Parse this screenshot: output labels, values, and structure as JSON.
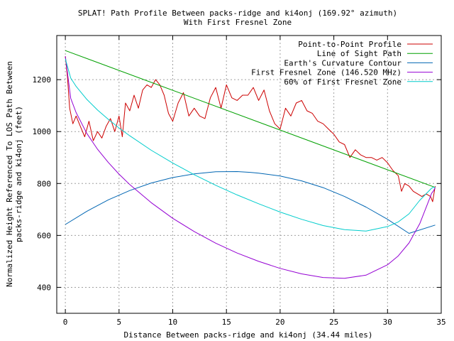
{
  "chart_data": {
    "type": "line",
    "title": "SPLAT! Path Profile Between packs-ridge and ki4onj (169.92° azimuth)",
    "subtitle": "With First Fresnel Zone",
    "xlabel": "Distance Between packs-ridge and ki4onj (34.44 miles)",
    "ylabel_line1": "Normalized Height Referenced To LOS Path Between",
    "ylabel_line2": "packs-ridge and ki4onj (feet)",
    "xlim": [
      -0.8,
      35
    ],
    "ylim": [
      300,
      1370
    ],
    "x_ticks": [
      0,
      5,
      10,
      15,
      20,
      25,
      30,
      35
    ],
    "y_ticks": [
      400,
      600,
      800,
      1000,
      1200
    ],
    "grid": true,
    "legend_position": "top-right",
    "series": [
      {
        "name": "Point-to-Point Profile",
        "color": "#cc0000",
        "x": [
          0,
          0.2,
          0.4,
          0.7,
          1.0,
          1.4,
          1.8,
          2.2,
          2.6,
          3.0,
          3.4,
          3.8,
          4.2,
          4.6,
          5.0,
          5.3,
          5.6,
          6.0,
          6.4,
          6.8,
          7.2,
          7.6,
          8.0,
          8.4,
          8.8,
          9.2,
          9.6,
          10.0,
          10.5,
          11.0,
          11.5,
          12.0,
          12.5,
          13.0,
          13.5,
          14.0,
          14.5,
          15.0,
          15.5,
          16.0,
          16.5,
          17.0,
          17.5,
          18.0,
          18.5,
          19.0,
          19.5,
          20.0,
          20.5,
          21.0,
          21.5,
          22.0,
          22.5,
          23.0,
          23.5,
          24.0,
          24.5,
          25.0,
          25.5,
          26.0,
          26.5,
          27.0,
          27.5,
          28.0,
          28.5,
          29.0,
          29.5,
          30.0,
          30.5,
          31.0,
          31.3,
          31.6,
          32.0,
          32.4,
          32.8,
          33.2,
          33.6,
          34.0,
          34.2,
          34.44
        ],
        "y": [
          1290,
          1210,
          1090,
          1030,
          1060,
          1020,
          980,
          1040,
          965,
          1000,
          975,
          1020,
          1050,
          1000,
          1060,
          980,
          1110,
          1080,
          1140,
          1090,
          1160,
          1180,
          1170,
          1200,
          1180,
          1140,
          1070,
          1040,
          1110,
          1150,
          1060,
          1090,
          1060,
          1050,
          1130,
          1170,
          1090,
          1180,
          1130,
          1120,
          1140,
          1140,
          1170,
          1120,
          1160,
          1080,
          1030,
          1010,
          1090,
          1060,
          1110,
          1120,
          1080,
          1070,
          1040,
          1030,
          1010,
          990,
          960,
          950,
          900,
          930,
          910,
          900,
          900,
          890,
          900,
          880,
          850,
          830,
          770,
          800,
          790,
          770,
          760,
          750,
          760,
          750,
          730,
          790
        ]
      },
      {
        "name": "Line of Sight Path",
        "color": "#00a000",
        "x": [
          0,
          34.44
        ],
        "y": [
          1312,
          785
        ]
      },
      {
        "name": "Earth's Curvature Contour",
        "color": "#0066b3",
        "x": [
          0,
          2,
          4,
          6,
          8,
          10,
          12,
          14,
          16,
          17.22,
          18,
          20,
          22,
          24,
          26,
          28,
          30,
          32,
          34.44
        ],
        "y": [
          642,
          693,
          737,
          773,
          802,
          823,
          837,
          845,
          846,
          843,
          840,
          829,
          810,
          784,
          750,
          709,
          662,
          608,
          640
        ]
      },
      {
        "name": "First Fresnel Zone (146.520 MHz)",
        "color": "#9400d3",
        "x": [
          0,
          0.5,
          1,
          2,
          3,
          4,
          5,
          6,
          8,
          10,
          12,
          14,
          16,
          18,
          20,
          22,
          24,
          26,
          28,
          30,
          31,
          32,
          33,
          33.7,
          34.1,
          34.3,
          34.44
        ],
        "y": [
          1290,
          1128,
          1073,
          993,
          932,
          881,
          836,
          796,
          726,
          666,
          615,
          570,
          532,
          500,
          473,
          452,
          438,
          435,
          447,
          487,
          521,
          571,
          645,
          719,
          762,
          773,
          785
        ]
      },
      {
        "name": "60% of First Fresnel Zone",
        "color": "#00cccc",
        "x": [
          0,
          0.5,
          1,
          2,
          3,
          4,
          5,
          6,
          8,
          10,
          12,
          14,
          16,
          18,
          20,
          22,
          24,
          26,
          28,
          30,
          31,
          32,
          33,
          33.7,
          34.1,
          34.3,
          34.44
        ],
        "y": [
          1280,
          1206,
          1174,
          1124,
          1083,
          1047,
          1014,
          984,
          928,
          879,
          834,
          793,
          756,
          722,
          690,
          662,
          638,
          622,
          617,
          634,
          652,
          683,
          735,
          765,
          782,
          786,
          785
        ]
      }
    ]
  }
}
